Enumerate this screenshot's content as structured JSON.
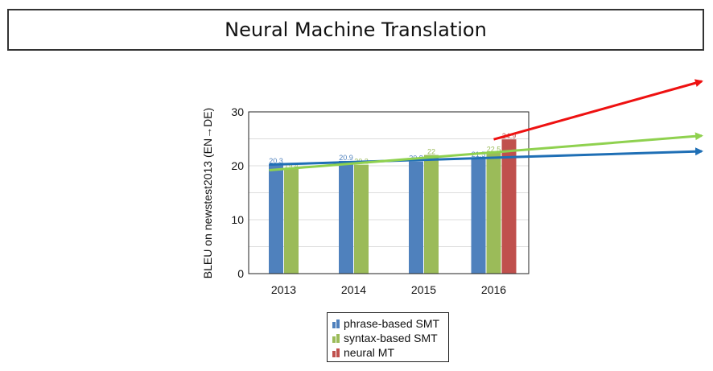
{
  "slide": {
    "title": "Neural Machine Translation"
  },
  "chart_data": {
    "type": "bar",
    "categories": [
      "2013",
      "2014",
      "2015",
      "2016"
    ],
    "series": [
      {
        "name": "phrase-based SMT",
        "color": "#4f81bd",
        "values": [
          20.3,
          20.9,
          20.8,
          21.5
        ],
        "labels": [
          "20.3",
          "20.9",
          "20.8",
          "21.5"
        ]
      },
      {
        "name": "syntax-based SMT",
        "color": "#9bbb59",
        "values": [
          19.4,
          20.2,
          22,
          22.5
        ],
        "labels": [
          "19.4",
          "20.2",
          "22",
          "22.5"
        ]
      },
      {
        "name": "neural MT",
        "color": "#c0504d",
        "values": [
          null,
          null,
          null,
          24.9
        ],
        "labels": [
          "",
          "",
          "",
          "24.9"
        ]
      }
    ],
    "ylabel": "BLEU on newstest2013 (EN→DE)",
    "ylim": [
      0,
      30
    ],
    "yticks": [
      "0",
      "10",
      "20",
      "30"
    ],
    "grid": true,
    "legend_position": "bottom",
    "trend_arrows": [
      {
        "series": "phrase-based SMT",
        "color": "#1f6fb5"
      },
      {
        "series": "syntax-based SMT",
        "color": "#8fd14f"
      },
      {
        "series": "neural MT",
        "color": "#ee1111"
      }
    ]
  }
}
